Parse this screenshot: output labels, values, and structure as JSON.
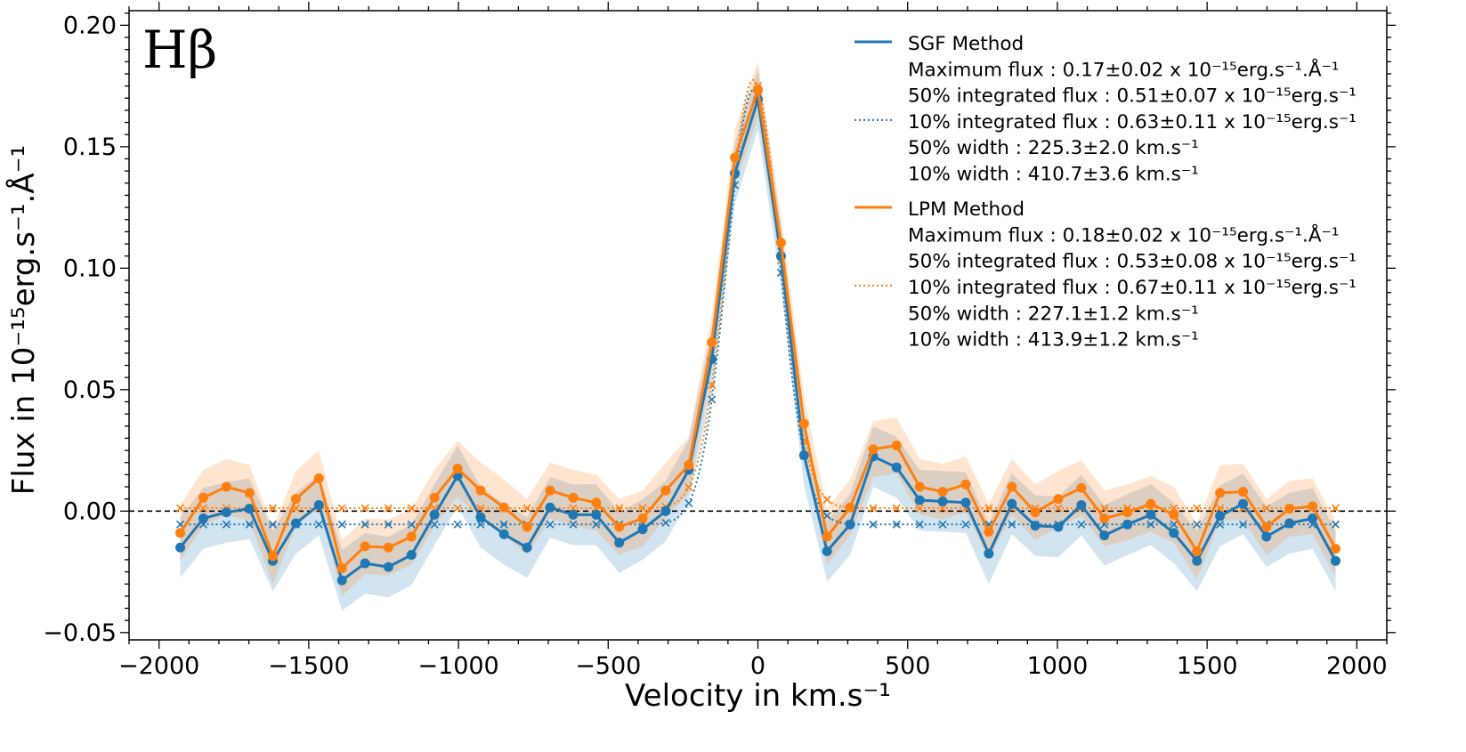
{
  "chart_data": {
    "type": "line",
    "panel_label": "Hβ",
    "xlabel": "Velocity in km.s⁻¹",
    "ylabel": "Flux in 10⁻¹⁵erg.s⁻¹.Å⁻¹",
    "xlim": [
      -2100,
      2100
    ],
    "ylim": [
      -0.053,
      0.206
    ],
    "xticks": [
      -2000,
      -1500,
      -1000,
      -500,
      0,
      500,
      1000,
      1500,
      2000
    ],
    "xtick_labels": [
      "−2000",
      "−1500",
      "−1000",
      "−500",
      "0",
      "500",
      "1000",
      "1500",
      "2000"
    ],
    "yticks": [
      -0.05,
      0.0,
      0.05,
      0.1,
      0.15,
      0.2
    ],
    "ytick_labels": [
      "−0.05",
      "0.00",
      "0.05",
      "0.10",
      "0.15",
      "0.20"
    ],
    "grid": false,
    "zero_line": true,
    "legend_position": "top-right",
    "x": [
      -1929,
      -1852,
      -1775,
      -1698,
      -1620,
      -1543,
      -1466,
      -1389,
      -1312,
      -1234,
      -1157,
      -1080,
      -1003,
      -926,
      -848,
      -771,
      -694,
      -617,
      -540,
      -463,
      -385,
      -308,
      -231,
      -154,
      -77,
      0,
      77,
      154,
      231,
      308,
      385,
      463,
      540,
      617,
      694,
      771,
      848,
      926,
      1003,
      1080,
      1157,
      1234,
      1312,
      1389,
      1466,
      1543,
      1620,
      1698,
      1775,
      1852,
      1929
    ],
    "series": [
      {
        "name": "SGF Method",
        "color": "#1f77b4",
        "values": [
          -0.015,
          -0.003,
          -0.0005,
          0.001,
          -0.0205,
          -0.005,
          0.0025,
          -0.0285,
          -0.0215,
          -0.023,
          -0.018,
          -0.0015,
          0.0145,
          -0.0025,
          -0.0095,
          -0.015,
          0.0015,
          -0.0015,
          -0.0015,
          -0.013,
          -0.0075,
          0.0,
          0.017,
          0.0625,
          0.139,
          0.1695,
          0.105,
          0.023,
          -0.0165,
          -0.0055,
          0.0225,
          0.018,
          0.0045,
          0.004,
          0.0035,
          -0.0175,
          0.003,
          -0.006,
          -0.0065,
          0.0025,
          -0.01,
          -0.0055,
          -0.0015,
          -0.009,
          -0.0205,
          -0.002,
          0.003,
          -0.0105,
          -0.005,
          -0.003,
          -0.0205
        ],
        "band_halfwidth": 0.0125,
        "fit_name": "",
        "fit_baseline": -0.0055
      },
      {
        "name": "LPM Method",
        "color": "#ff7f0e",
        "values": [
          -0.009,
          0.0055,
          0.01,
          0.0075,
          -0.0185,
          0.005,
          0.0135,
          -0.0235,
          -0.0145,
          -0.015,
          -0.0105,
          0.0055,
          0.0175,
          0.0085,
          0.0015,
          -0.0065,
          0.0085,
          0.0055,
          0.0035,
          -0.0065,
          -0.003,
          0.0085,
          0.019,
          0.0695,
          0.1455,
          0.1735,
          0.1105,
          0.036,
          -0.0105,
          0.0015,
          0.0255,
          0.027,
          0.01,
          0.008,
          0.011,
          -0.0085,
          0.01,
          -0.0005,
          0.005,
          0.0095,
          -0.003,
          -0.0005,
          0.003,
          -0.0015,
          -0.0165,
          0.0075,
          0.008,
          -0.0065,
          0.001,
          0.002,
          -0.0155
        ],
        "band_halfwidth": 0.0115,
        "fit_name": "",
        "fit_baseline": 0.0012
      }
    ],
    "fit_peak_center": -15,
    "fit_peak_sigma": 88,
    "legend": [
      {
        "kind": "line",
        "series": 0,
        "text": "SGF Method"
      },
      {
        "kind": "text",
        "text": "Maximum flux : 0.17±0.02 x 10⁻¹⁵erg.s⁻¹.Å⁻¹"
      },
      {
        "kind": "text",
        "text": "50% integrated flux : 0.51±0.07 x 10⁻¹⁵erg.s⁻¹"
      },
      {
        "kind": "dotted",
        "series": 0,
        "text": "10% integrated flux : 0.63±0.11 x 10⁻¹⁵erg.s⁻¹"
      },
      {
        "kind": "text",
        "text": "50% width : 225.3±2.0 km.s⁻¹"
      },
      {
        "kind": "text",
        "text": "10% width : 410.7±3.6 km.s⁻¹"
      },
      {
        "kind": "line",
        "series": 1,
        "text": "LPM Method"
      },
      {
        "kind": "text",
        "text": "Maximum flux : 0.18±0.02 x 10⁻¹⁵erg.s⁻¹.Å⁻¹"
      },
      {
        "kind": "text",
        "text": "50% integrated flux : 0.53±0.08 x 10⁻¹⁵erg.s⁻¹"
      },
      {
        "kind": "dotted",
        "series": 1,
        "text": "10% integrated flux : 0.67±0.11 x 10⁻¹⁵erg.s⁻¹"
      },
      {
        "kind": "text",
        "text": "50% width : 227.1±1.2 km.s⁻¹"
      },
      {
        "kind": "text",
        "text": "10% width : 413.9±1.2 km.s⁻¹"
      }
    ]
  }
}
